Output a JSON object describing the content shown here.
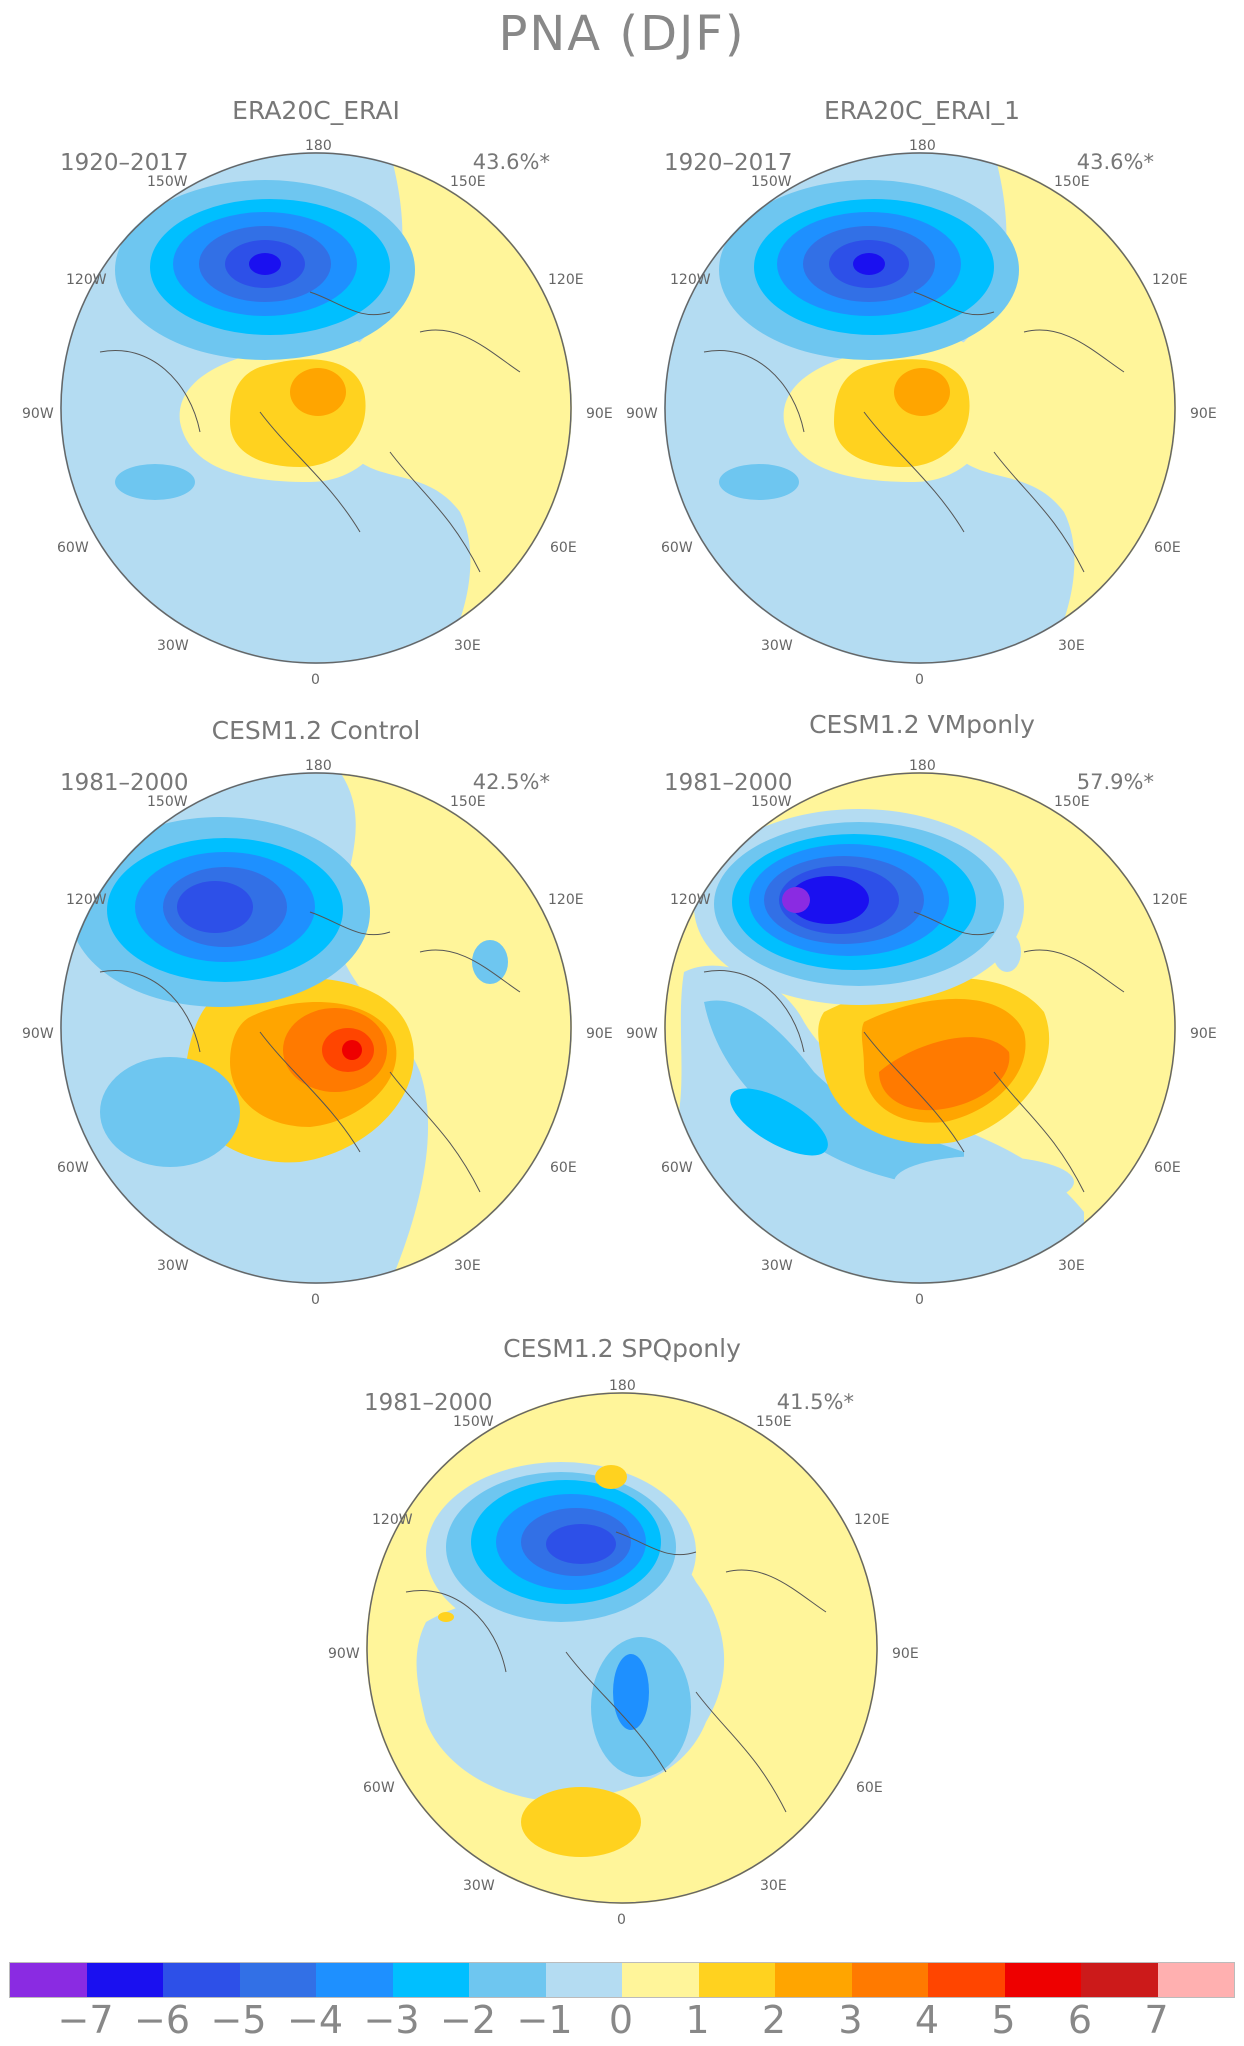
{
  "title": "PNA (DJF)",
  "panels": [
    {
      "name": "ERA20C_ERAI",
      "period": "1920–2017",
      "variance": "43.6%*"
    },
    {
      "name": "ERA20C_ERAI_1",
      "period": "1920–2017",
      "variance": "43.6%*"
    },
    {
      "name": "CESM1.2 Control",
      "period": "1981–2000",
      "variance": "42.5%*"
    },
    {
      "name": "CESM1.2 VMponly",
      "period": "1981–2000",
      "variance": "57.9%*"
    },
    {
      "name": "CESM1.2 SPQponly",
      "period": "1981–2000",
      "variance": "41.5%*"
    }
  ],
  "longitude_labels": {
    "top": "180",
    "bottom": "0",
    "upper_left": "150W",
    "upper_right": "150E",
    "mid_upper_left": "120W",
    "mid_upper_right": "120E",
    "left": "90W",
    "right": "90E",
    "mid_lower_left": "60W",
    "mid_lower_right": "60E",
    "lower_left": "30W",
    "lower_right": "30E"
  },
  "colorbar": {
    "ticks": [
      "−7",
      "−6",
      "−5",
      "−4",
      "−3",
      "−2",
      "−1",
      "0",
      "1",
      "2",
      "3",
      "4",
      "5",
      "6",
      "7"
    ],
    "colors": [
      "#8a2be2",
      "#1a10f0",
      "#2d50e8",
      "#3270e6",
      "#1e90ff",
      "#00bfff",
      "#6ec6f0",
      "#b4dcf2",
      "#fff59a",
      "#ffd21f",
      "#ffa500",
      "#ff7a00",
      "#ff4500",
      "#ee0000",
      "#cc1a1a",
      "#ffb0b0"
    ]
  }
}
